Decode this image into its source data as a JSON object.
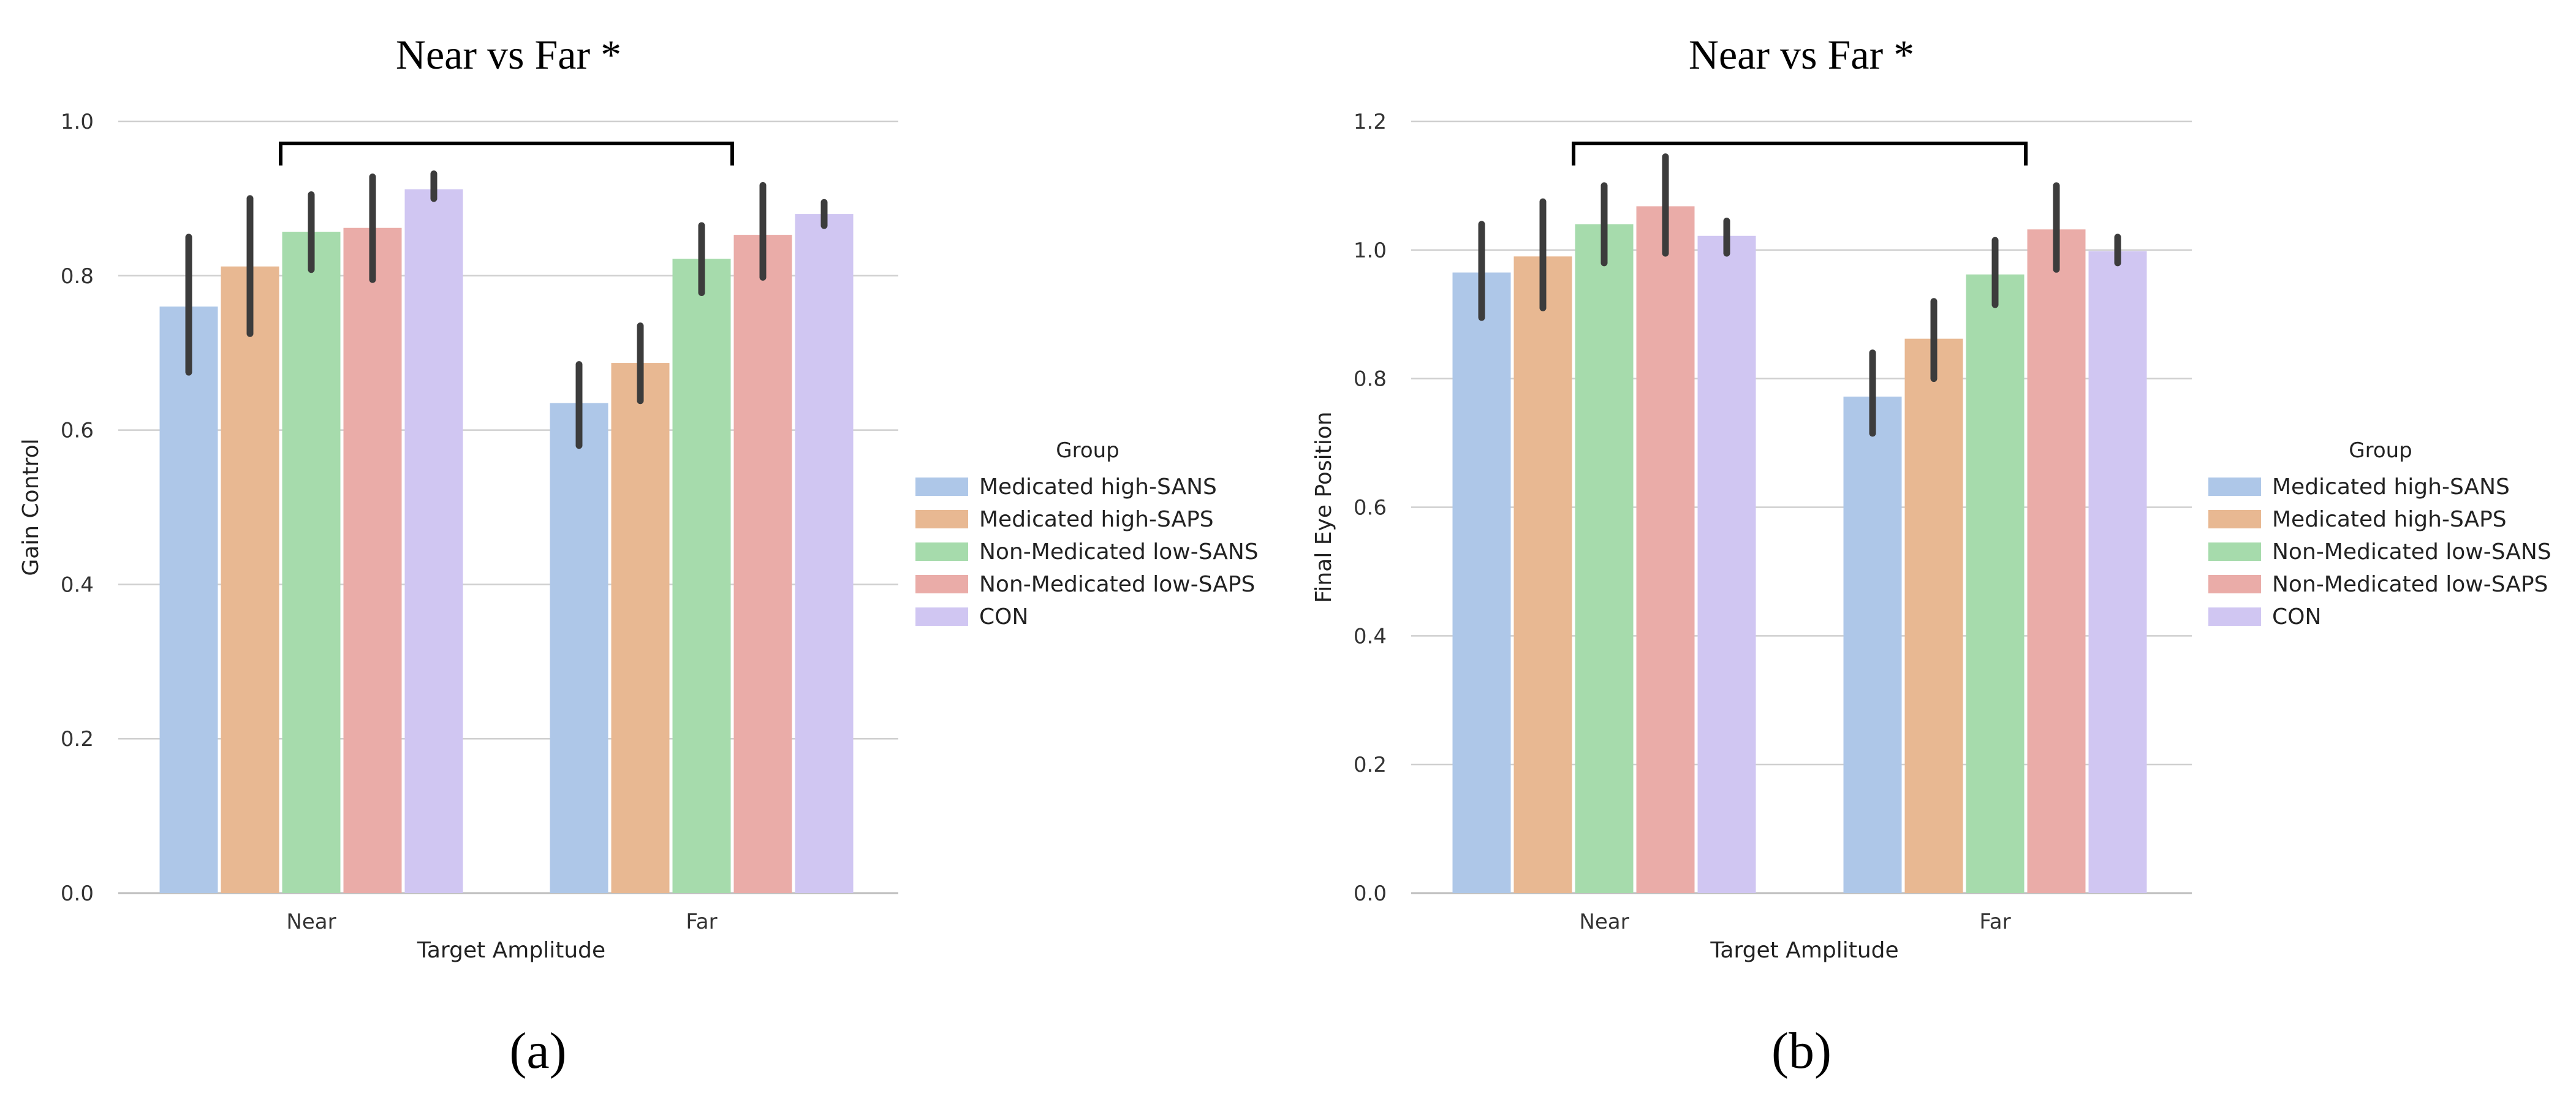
{
  "chart_data": [
    {
      "type": "bar",
      "title": "Near vs Far *",
      "caption": "(a)",
      "xlabel": "Target Amplitude",
      "ylabel": "Gain Control",
      "ylim": [
        0,
        1.0
      ],
      "yticks": [
        "0.0",
        "0.2",
        "0.4",
        "0.6",
        "0.8",
        "1.0"
      ],
      "categories": [
        "Near",
        "Far"
      ],
      "grid": true,
      "legend_title": "Group",
      "legend_position": "right",
      "significance_bracket": [
        "Near",
        "Far"
      ],
      "series": [
        {
          "name": "Medicated high-SANS",
          "color": "#aec7e8",
          "values": [
            0.76,
            0.635
          ],
          "ci_low": [
            0.675,
            0.58
          ],
          "ci_high": [
            0.85,
            0.685
          ]
        },
        {
          "name": "Medicated high-SAPS",
          "color": "#e8b892",
          "values": [
            0.812,
            0.687
          ],
          "ci_low": [
            0.725,
            0.638
          ],
          "ci_high": [
            0.9,
            0.735
          ]
        },
        {
          "name": "Non-Medicated low-SANS",
          "color": "#a6dbac",
          "values": [
            0.857,
            0.822
          ],
          "ci_low": [
            0.808,
            0.778
          ],
          "ci_high": [
            0.905,
            0.865
          ]
        },
        {
          "name": "Non-Medicated low-SAPS",
          "color": "#eaaca8",
          "values": [
            0.862,
            0.853
          ],
          "ci_low": [
            0.795,
            0.798
          ],
          "ci_high": [
            0.928,
            0.917
          ]
        },
        {
          "name": "CON",
          "color": "#d0c6f2",
          "values": [
            0.912,
            0.88
          ],
          "ci_low": [
            0.9,
            0.865
          ],
          "ci_high": [
            0.932,
            0.895
          ]
        }
      ]
    },
    {
      "type": "bar",
      "title": "Near vs Far *",
      "caption": "(b)",
      "xlabel": "Target Amplitude",
      "ylabel": "Final Eye Position",
      "ylim": [
        0,
        1.2
      ],
      "yticks": [
        "0.0",
        "0.2",
        "0.4",
        "0.6",
        "0.8",
        "1.0",
        "1.2"
      ],
      "categories": [
        "Near",
        "Far"
      ],
      "grid": true,
      "legend_title": "Group",
      "legend_position": "right",
      "significance_bracket": [
        "Near",
        "Far"
      ],
      "series": [
        {
          "name": "Medicated high-SANS",
          "color": "#aec7e8",
          "values": [
            0.965,
            0.772
          ],
          "ci_low": [
            0.895,
            0.715
          ],
          "ci_high": [
            1.04,
            0.84
          ]
        },
        {
          "name": "Medicated high-SAPS",
          "color": "#e8b892",
          "values": [
            0.99,
            0.862
          ],
          "ci_low": [
            0.91,
            0.8
          ],
          "ci_high": [
            1.075,
            0.92
          ]
        },
        {
          "name": "Non-Medicated low-SANS",
          "color": "#a6dbac",
          "values": [
            1.04,
            0.962
          ],
          "ci_low": [
            0.98,
            0.915
          ],
          "ci_high": [
            1.1,
            1.015
          ]
        },
        {
          "name": "Non-Medicated low-SAPS",
          "color": "#eaaca8",
          "values": [
            1.068,
            1.032
          ],
          "ci_low": [
            0.995,
            0.97
          ],
          "ci_high": [
            1.145,
            1.1
          ]
        },
        {
          "name": "CON",
          "color": "#d0c6f2",
          "values": [
            1.022,
            0.998
          ],
          "ci_low": [
            0.995,
            0.98
          ],
          "ci_high": [
            1.045,
            1.02
          ]
        }
      ]
    }
  ]
}
